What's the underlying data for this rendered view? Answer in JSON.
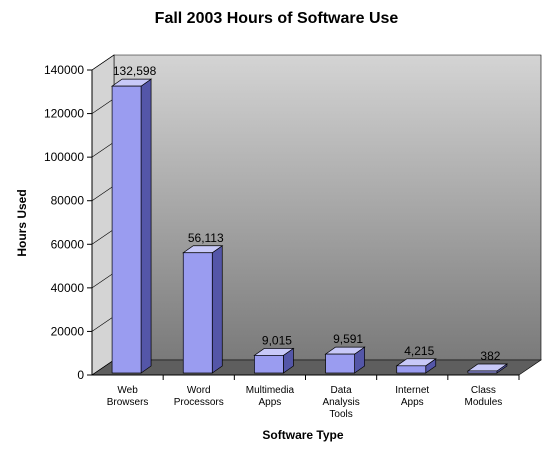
{
  "chart_data": {
    "type": "bar",
    "title": "Fall 2003 Hours of Software Use",
    "xlabel": "Software Type",
    "ylabel": "Hours Used",
    "ylim": [
      0,
      140000
    ],
    "yticks": [
      "0",
      "20000",
      "40000",
      "60000",
      "80000",
      "100000",
      "120000",
      "140000"
    ],
    "categories": [
      [
        "Web",
        "Browsers"
      ],
      [
        "Word",
        "Processors"
      ],
      [
        "Multimedia",
        "Apps"
      ],
      [
        "Data",
        "Analysis",
        "Tools"
      ],
      [
        "Internet",
        "Apps"
      ],
      [
        "Class",
        "Modules"
      ]
    ],
    "values": [
      132598,
      56113,
      9015,
      9591,
      4215,
      382
    ],
    "data_labels": [
      "132,598",
      "56,113",
      "9,015",
      "9,591",
      "4,215",
      "382"
    ],
    "grid": false,
    "colors": {
      "bar_front": "#9a9cf0",
      "bar_top": "#c8c9f8",
      "bar_side": "#5456a8",
      "wall_top": "#d4d4d4",
      "wall_bottom": "#7a7a7a",
      "floor": "#5e5e5e"
    }
  }
}
